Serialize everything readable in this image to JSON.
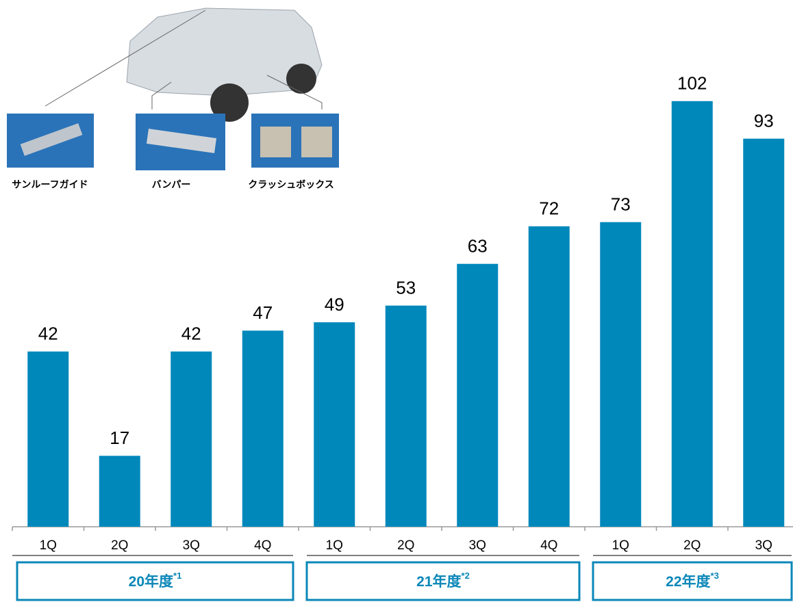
{
  "chart_data": {
    "type": "bar",
    "categories": [
      "1Q",
      "2Q",
      "3Q",
      "4Q",
      "1Q",
      "2Q",
      "3Q",
      "4Q",
      "1Q",
      "2Q",
      "3Q"
    ],
    "values": [
      42,
      17,
      42,
      47,
      49,
      53,
      63,
      72,
      73,
      102,
      93
    ],
    "color": "#0088bb",
    "groups": [
      {
        "name": "20年度",
        "note": "*1",
        "span": 4
      },
      {
        "name": "21年度",
        "note": "*2",
        "span": 4
      },
      {
        "name": "22年度",
        "note": "*3",
        "span": 3
      }
    ],
    "annotations": [
      "サンルーフガイド",
      "バンパー",
      "クラッシュボックス"
    ]
  }
}
